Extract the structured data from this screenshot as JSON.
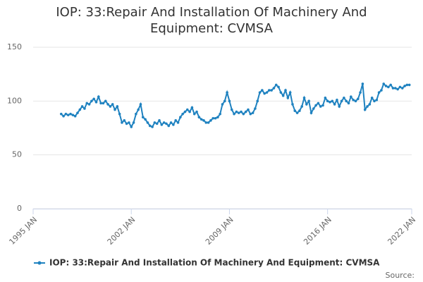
{
  "chart_data": {
    "type": "line",
    "title": "IOP: 33:Repair And Installation Of Machinery And Equipment: CVMSA",
    "source_label": "Source:",
    "x": [
      "1997-01",
      "1997-03",
      "1997-05",
      "1997-07",
      "1997-09",
      "1997-11",
      "1998-01",
      "1998-03",
      "1998-05",
      "1998-07",
      "1998-09",
      "1998-11",
      "1999-01",
      "1999-03",
      "1999-05",
      "1999-07",
      "1999-09",
      "1999-11",
      "2000-01",
      "2000-03",
      "2000-05",
      "2000-07",
      "2000-09",
      "2000-11",
      "2001-01",
      "2001-03",
      "2001-05",
      "2001-07",
      "2001-09",
      "2001-11",
      "2002-01",
      "2002-03",
      "2002-05",
      "2002-07",
      "2002-09",
      "2002-11",
      "2003-01",
      "2003-03",
      "2003-05",
      "2003-07",
      "2003-09",
      "2003-11",
      "2004-01",
      "2004-03",
      "2004-05",
      "2004-07",
      "2004-09",
      "2004-11",
      "2005-01",
      "2005-03",
      "2005-05",
      "2005-07",
      "2005-09",
      "2005-11",
      "2006-01",
      "2006-03",
      "2006-05",
      "2006-07",
      "2006-09",
      "2006-11",
      "2007-01",
      "2007-03",
      "2007-05",
      "2007-07",
      "2007-09",
      "2007-11",
      "2008-01",
      "2008-03",
      "2008-05",
      "2008-07",
      "2008-09",
      "2008-11",
      "2009-01",
      "2009-03",
      "2009-05",
      "2009-07",
      "2009-09",
      "2009-11",
      "2010-01",
      "2010-03",
      "2010-05",
      "2010-07",
      "2010-09",
      "2010-11",
      "2011-01",
      "2011-03",
      "2011-05",
      "2011-07",
      "2011-09",
      "2011-11",
      "2012-01",
      "2012-03",
      "2012-05",
      "2012-07",
      "2012-09",
      "2012-11",
      "2013-01",
      "2013-03",
      "2013-05",
      "2013-07",
      "2013-09",
      "2013-11",
      "2014-01",
      "2014-03",
      "2014-05",
      "2014-07",
      "2014-09",
      "2014-11",
      "2015-01",
      "2015-03",
      "2015-05",
      "2015-07",
      "2015-09",
      "2015-11",
      "2016-01",
      "2016-03",
      "2016-05",
      "2016-07",
      "2016-09",
      "2016-11",
      "2017-01",
      "2017-03",
      "2017-05",
      "2017-07",
      "2017-09",
      "2017-11",
      "2018-01",
      "2018-03",
      "2018-05",
      "2018-07",
      "2018-09",
      "2018-11",
      "2019-01",
      "2019-03",
      "2019-05",
      "2019-07",
      "2019-09",
      "2019-11",
      "2020-01",
      "2020-03",
      "2020-05",
      "2020-07",
      "2020-09",
      "2020-11",
      "2021-01",
      "2021-03",
      "2021-05",
      "2021-07",
      "2021-09",
      "2021-11"
    ],
    "series": [
      {
        "name": "IOP: 33:Repair And Installation Of Machinery And Equipment: CVMSA",
        "color": "#1f82c0",
        "values": [
          88,
          86,
          88,
          87,
          88,
          87,
          86,
          89,
          92,
          95,
          93,
          98,
          97,
          100,
          102,
          99,
          104,
          98,
          98,
          100,
          97,
          95,
          97,
          92,
          95,
          88,
          80,
          82,
          79,
          80,
          76,
          80,
          88,
          92,
          97,
          85,
          83,
          80,
          77,
          76,
          80,
          79,
          82,
          78,
          80,
          79,
          77,
          80,
          78,
          82,
          80,
          85,
          88,
          90,
          92,
          90,
          94,
          88,
          90,
          85,
          83,
          82,
          80,
          80,
          82,
          84,
          84,
          85,
          88,
          97,
          100,
          108,
          100,
          92,
          88,
          90,
          89,
          90,
          88,
          90,
          92,
          88,
          89,
          93,
          100,
          108,
          110,
          107,
          108,
          110,
          110,
          112,
          115,
          113,
          108,
          105,
          110,
          103,
          108,
          97,
          91,
          89,
          91,
          95,
          103,
          97,
          100,
          89,
          93,
          96,
          98,
          95,
          96,
          103,
          100,
          99,
          100,
          97,
          101,
          95,
          100,
          103,
          100,
          98,
          104,
          101,
          100,
          102,
          108,
          116,
          92,
          95,
          97,
          103,
          100,
          101,
          108,
          110,
          116,
          114,
          113,
          115,
          112,
          112,
          111,
          113,
          112,
          114,
          115,
          115
        ]
      }
    ],
    "xlim": [
      "1995-01",
      "2022-01"
    ],
    "xticks": [
      {
        "value": "1995-01",
        "label": "1995 JAN"
      },
      {
        "value": "2002-01",
        "label": "2002 JAN"
      },
      {
        "value": "2009-01",
        "label": "2009 JAN"
      },
      {
        "value": "2016-01",
        "label": "2016 JAN"
      },
      {
        "value": "2022-01",
        "label": "2022 JAN"
      }
    ],
    "ylim": [
      0,
      150
    ],
    "yticks": [
      0,
      50,
      100,
      150
    ],
    "grid": true
  }
}
